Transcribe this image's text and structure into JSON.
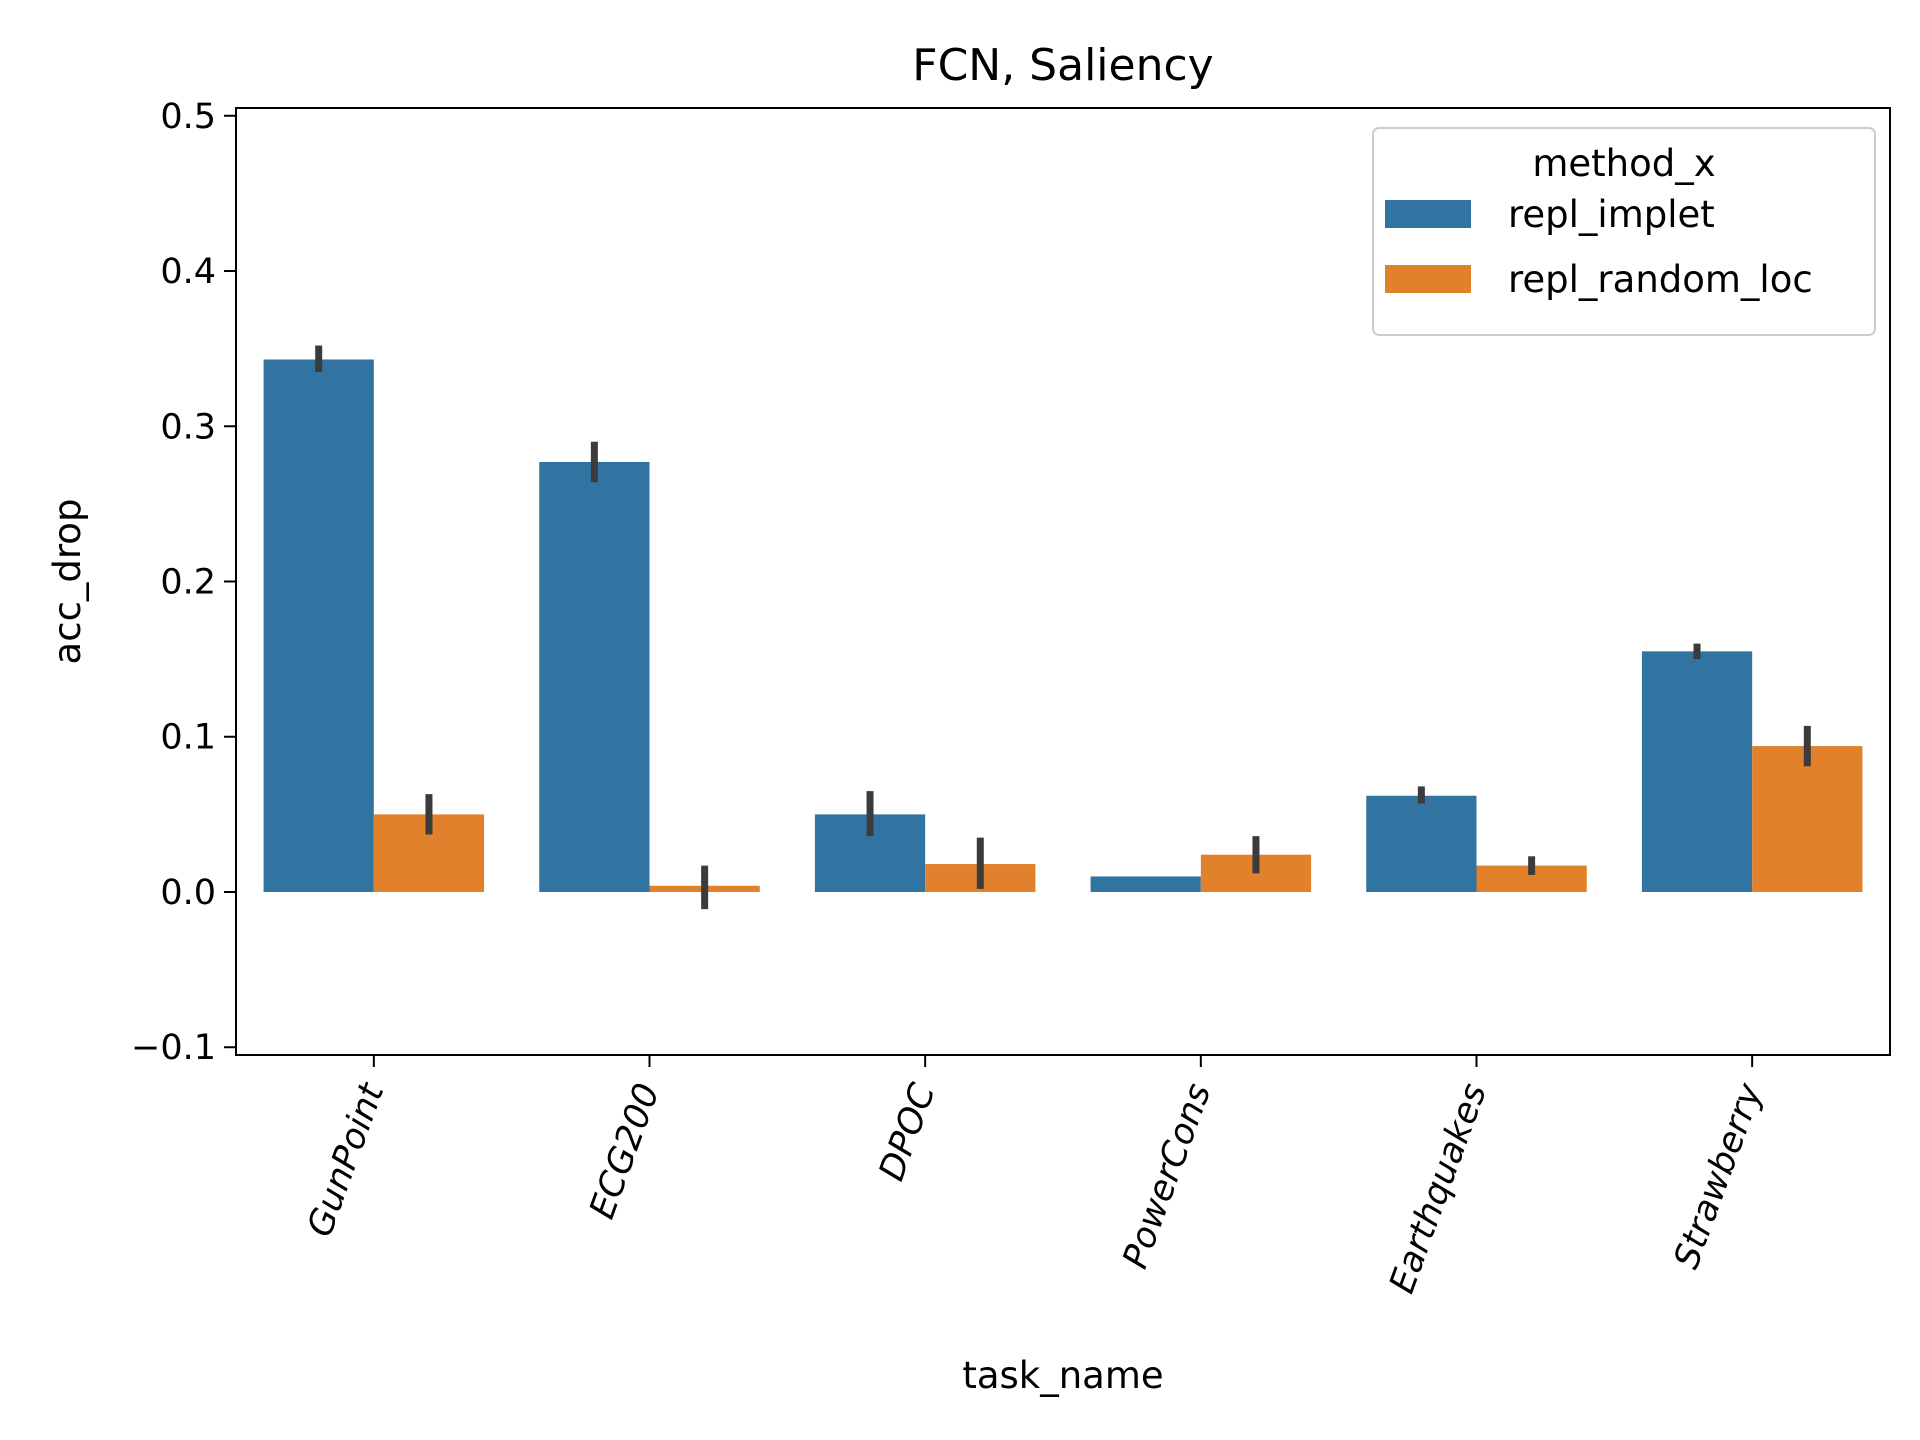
{
  "chart_data": {
    "type": "bar",
    "title": "FCN, Saliency",
    "xlabel": "task_name",
    "ylabel": "acc_drop",
    "categories": [
      "GunPoint",
      "ECG200",
      "DPOC",
      "PowerCons",
      "Earthquakes",
      "Strawberry"
    ],
    "series": [
      {
        "name": "repl_implet",
        "color": "#3274a1",
        "values": [
          0.343,
          0.277,
          0.05,
          0.01,
          0.062,
          0.155
        ],
        "error_low": [
          0.335,
          0.264,
          0.036,
          0.01,
          0.057,
          0.15
        ],
        "error_high": [
          0.352,
          0.29,
          0.065,
          0.01,
          0.068,
          0.16
        ]
      },
      {
        "name": "repl_random_loc",
        "color": "#e1812c",
        "values": [
          0.05,
          0.004,
          0.018,
          0.024,
          0.017,
          0.094
        ],
        "error_low": [
          0.037,
          -0.011,
          0.002,
          0.012,
          0.011,
          0.081
        ],
        "error_high": [
          0.063,
          0.017,
          0.035,
          0.036,
          0.023,
          0.107
        ]
      }
    ],
    "ylim": [
      -0.105,
      0.505
    ],
    "yticks": [
      -0.1,
      0.0,
      0.1,
      0.2,
      0.3,
      0.4,
      0.5
    ],
    "ytick_labels": [
      "−0.1",
      "0.0",
      "0.1",
      "0.2",
      "0.3",
      "0.4",
      "0.5"
    ],
    "legend": {
      "title": "method_x",
      "placement": "top-right"
    },
    "grid": false,
    "errorbar_color": "#3b3b3b"
  }
}
